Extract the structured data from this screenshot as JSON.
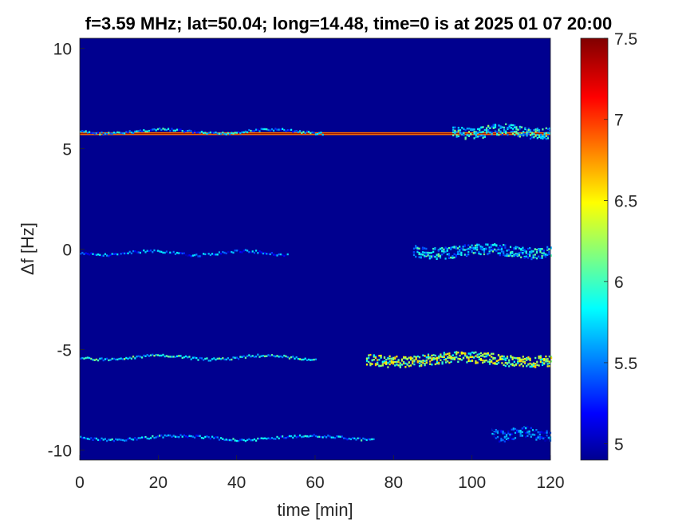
{
  "chart_data": {
    "type": "heatmap",
    "title": "f=3.59 MHz;  lat=50.04; long=14.48, time=0 is at 2025 01 07 20:00",
    "xlabel": "time [min]",
    "ylabel": "Δf [Hz]",
    "xlim": [
      0,
      120
    ],
    "ylim": [
      -10.5,
      10.5
    ],
    "xticks": [
      0,
      20,
      40,
      60,
      80,
      100,
      120
    ],
    "xtick_labels": [
      "0",
      "20",
      "40",
      "60",
      "80",
      "100",
      "120"
    ],
    "yticks": [
      10,
      5,
      0,
      -5,
      -10
    ],
    "ytick_labels": [
      "10",
      "5",
      "0",
      "-5",
      "-10"
    ],
    "colorbar": {
      "colormap": "jet",
      "clim": [
        4.9,
        7.5
      ],
      "ticks": [
        5,
        5.5,
        6,
        6.5,
        7,
        7.5
      ],
      "tick_labels": [
        "5",
        "5.5",
        "6",
        "6.5",
        "7",
        "7.5"
      ]
    },
    "background_value": 4.9,
    "traces": [
      {
        "start": 0,
        "end": 120,
        "df": 5.75,
        "intensity": 6.9,
        "kind": "carrier"
      },
      {
        "start": 0,
        "end": 62,
        "df": 5.85,
        "intensity": 5.8,
        "kind": "trace"
      },
      {
        "start": 95,
        "end": 120,
        "df": 5.85,
        "intensity": 6.0,
        "kind": "band"
      },
      {
        "start": 0,
        "end": 53,
        "df": -0.2,
        "intensity": 5.6,
        "kind": "trace"
      },
      {
        "start": 85,
        "end": 120,
        "df": -0.1,
        "intensity": 5.9,
        "kind": "band"
      },
      {
        "start": 0,
        "end": 60,
        "df": -5.4,
        "intensity": 6.0,
        "kind": "trace"
      },
      {
        "start": 73,
        "end": 120,
        "df": -5.5,
        "intensity": 6.4,
        "kind": "band"
      },
      {
        "start": 0,
        "end": 75,
        "df": -9.4,
        "intensity": 5.8,
        "kind": "trace"
      },
      {
        "start": 105,
        "end": 120,
        "df": -9.2,
        "intensity": 5.5,
        "kind": "band"
      }
    ]
  }
}
